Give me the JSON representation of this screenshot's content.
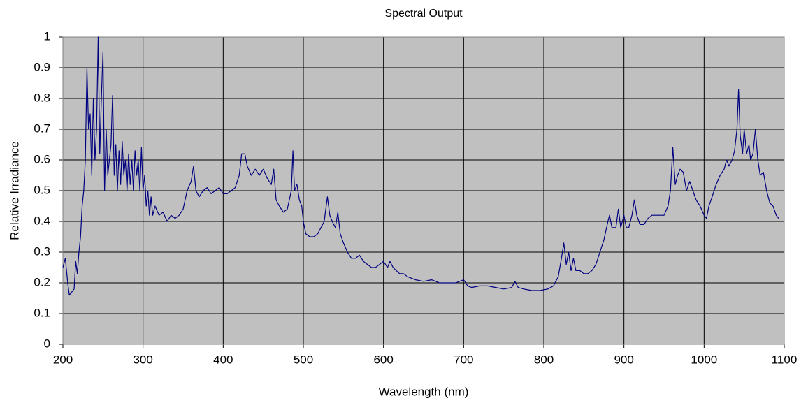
{
  "chart_data": {
    "type": "line",
    "title": "Spectral Output",
    "x_label": "Wavelength (nm)",
    "y_label": "Relative Irradiance",
    "x": [
      200,
      203,
      206,
      208,
      211,
      214,
      216,
      218,
      220,
      222,
      224,
      226,
      228,
      230,
      232,
      234,
      236,
      238,
      240,
      242,
      244,
      246,
      248,
      250,
      252,
      254,
      256,
      258,
      260,
      262,
      264,
      266,
      268,
      270,
      272,
      274,
      276,
      278,
      280,
      282,
      284,
      286,
      288,
      290,
      292,
      294,
      296,
      298,
      300,
      302,
      304,
      306,
      308,
      310,
      312,
      315,
      320,
      325,
      330,
      335,
      340,
      345,
      350,
      355,
      360,
      363,
      366,
      370,
      375,
      380,
      385,
      390,
      395,
      400,
      405,
      410,
      415,
      420,
      423,
      427,
      430,
      435,
      440,
      445,
      450,
      455,
      460,
      463,
      466,
      470,
      475,
      480,
      485,
      487,
      489,
      492,
      495,
      498,
      500,
      503,
      508,
      513,
      518,
      522,
      526,
      530,
      533,
      536,
      540,
      543,
      546,
      550,
      555,
      560,
      565,
      570,
      575,
      580,
      585,
      590,
      595,
      600,
      605,
      608,
      612,
      620,
      625,
      630,
      640,
      650,
      660,
      670,
      680,
      690,
      700,
      705,
      710,
      720,
      730,
      740,
      750,
      760,
      764,
      768,
      775,
      785,
      795,
      805,
      812,
      818,
      822,
      825,
      828,
      831,
      834,
      837,
      840,
      845,
      850,
      855,
      860,
      865,
      870,
      875,
      880,
      882,
      885,
      890,
      893,
      896,
      900,
      903,
      906,
      910,
      913,
      916,
      920,
      925,
      930,
      935,
      940,
      945,
      950,
      955,
      958,
      961,
      964,
      967,
      970,
      974,
      978,
      982,
      986,
      990,
      995,
      1000,
      1003,
      1006,
      1010,
      1015,
      1020,
      1025,
      1028,
      1031,
      1035,
      1038,
      1041,
      1043,
      1045,
      1048,
      1050,
      1053,
      1056,
      1058,
      1061,
      1064,
      1067,
      1070,
      1074,
      1078,
      1082,
      1086,
      1090,
      1093
    ],
    "series": [
      {
        "name": "Relative Irradiance",
        "color": "#000080",
        "values": [
          0.25,
          0.28,
          0.2,
          0.16,
          0.17,
          0.18,
          0.27,
          0.23,
          0.3,
          0.35,
          0.45,
          0.5,
          0.6,
          0.9,
          0.7,
          0.75,
          0.55,
          0.8,
          0.6,
          0.7,
          1.0,
          0.62,
          0.8,
          0.95,
          0.5,
          0.7,
          0.55,
          0.6,
          0.65,
          0.81,
          0.55,
          0.65,
          0.5,
          0.63,
          0.52,
          0.66,
          0.55,
          0.6,
          0.5,
          0.62,
          0.52,
          0.6,
          0.5,
          0.63,
          0.55,
          0.6,
          0.5,
          0.64,
          0.5,
          0.55,
          0.45,
          0.5,
          0.42,
          0.48,
          0.42,
          0.45,
          0.42,
          0.43,
          0.4,
          0.42,
          0.41,
          0.42,
          0.44,
          0.5,
          0.53,
          0.58,
          0.5,
          0.48,
          0.5,
          0.51,
          0.49,
          0.5,
          0.51,
          0.49,
          0.49,
          0.5,
          0.51,
          0.55,
          0.62,
          0.62,
          0.58,
          0.55,
          0.57,
          0.55,
          0.57,
          0.54,
          0.52,
          0.57,
          0.47,
          0.45,
          0.43,
          0.44,
          0.5,
          0.63,
          0.5,
          0.52,
          0.47,
          0.45,
          0.4,
          0.36,
          0.35,
          0.35,
          0.36,
          0.38,
          0.4,
          0.48,
          0.42,
          0.4,
          0.38,
          0.43,
          0.36,
          0.33,
          0.3,
          0.28,
          0.28,
          0.29,
          0.27,
          0.26,
          0.25,
          0.25,
          0.26,
          0.27,
          0.25,
          0.27,
          0.25,
          0.23,
          0.23,
          0.22,
          0.21,
          0.205,
          0.21,
          0.2,
          0.2,
          0.2,
          0.21,
          0.19,
          0.185,
          0.19,
          0.19,
          0.185,
          0.18,
          0.185,
          0.205,
          0.185,
          0.18,
          0.175,
          0.175,
          0.18,
          0.19,
          0.22,
          0.28,
          0.33,
          0.26,
          0.3,
          0.24,
          0.28,
          0.24,
          0.24,
          0.23,
          0.23,
          0.24,
          0.26,
          0.3,
          0.34,
          0.4,
          0.42,
          0.38,
          0.38,
          0.44,
          0.38,
          0.42,
          0.38,
          0.38,
          0.42,
          0.47,
          0.42,
          0.39,
          0.39,
          0.41,
          0.42,
          0.42,
          0.42,
          0.42,
          0.45,
          0.5,
          0.64,
          0.52,
          0.55,
          0.57,
          0.56,
          0.5,
          0.53,
          0.5,
          0.47,
          0.45,
          0.42,
          0.41,
          0.45,
          0.48,
          0.52,
          0.55,
          0.57,
          0.6,
          0.58,
          0.6,
          0.63,
          0.7,
          0.83,
          0.68,
          0.62,
          0.7,
          0.62,
          0.65,
          0.6,
          0.62,
          0.7,
          0.6,
          0.55,
          0.56,
          0.5,
          0.46,
          0.45,
          0.42,
          0.41
        ]
      }
    ],
    "xlim": [
      200,
      1100
    ],
    "xticks": [
      200,
      300,
      400,
      500,
      600,
      700,
      800,
      900,
      1000,
      1100
    ],
    "ylim": [
      0,
      1
    ],
    "yticks": [
      0,
      0.1,
      0.2,
      0.3,
      0.4,
      0.5,
      0.6,
      0.7,
      0.8,
      0.9,
      1
    ],
    "grid": true,
    "plot_background": "#c0c0c0"
  }
}
